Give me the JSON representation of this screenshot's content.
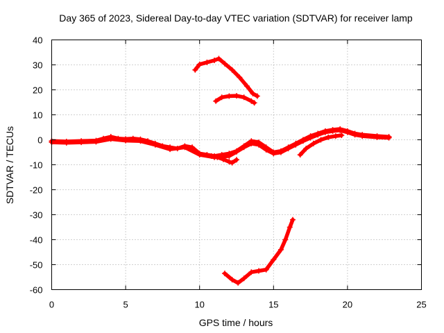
{
  "chart_data": {
    "type": "line",
    "title": "Day 365 of 2023, Sidereal Day-to-day VTEC variation (SDTVAR) for receiver lamp",
    "xlabel": "GPS time / hours",
    "ylabel": "SDTVAR / TECUs",
    "xlim": [
      0,
      25
    ],
    "ylim": [
      -60,
      40
    ],
    "xticks": [
      0,
      5,
      10,
      15,
      20,
      25
    ],
    "yticks": [
      -60,
      -50,
      -40,
      -30,
      -20,
      -10,
      0,
      10,
      20,
      30,
      40
    ],
    "grid": true,
    "legend": "none",
    "color": "#ff0000",
    "series": [
      {
        "name": "main-track-a",
        "points": [
          [
            0.0,
            -0.5
          ],
          [
            1.0,
            -0.7
          ],
          [
            2.0,
            -0.5
          ],
          [
            3.0,
            -0.3
          ],
          [
            3.5,
            0.5
          ],
          [
            4.0,
            1.2
          ],
          [
            4.5,
            0.5
          ],
          [
            5.0,
            0.3
          ],
          [
            5.5,
            0.5
          ],
          [
            6.0,
            0.2
          ],
          [
            6.5,
            -0.5
          ],
          [
            7.0,
            -1.5
          ],
          [
            7.5,
            -2.5
          ],
          [
            8.0,
            -3.0
          ],
          [
            8.5,
            -3.5
          ],
          [
            9.0,
            -2.5
          ],
          [
            9.5,
            -3.0
          ],
          [
            10.0,
            -5.5
          ],
          [
            10.5,
            -6.0
          ],
          [
            11.0,
            -6.5
          ],
          [
            11.5,
            -6.0
          ],
          [
            12.0,
            -5.5
          ],
          [
            12.5,
            -4.5
          ],
          [
            13.0,
            -2.5
          ],
          [
            13.5,
            -0.5
          ],
          [
            14.0,
            -1.0
          ],
          [
            14.5,
            -3.0
          ],
          [
            15.0,
            -5.0
          ],
          [
            15.5,
            -4.5
          ],
          [
            16.0,
            -3.0
          ],
          [
            16.5,
            -1.5
          ],
          [
            17.0,
            0.0
          ],
          [
            17.5,
            1.5
          ],
          [
            18.0,
            2.5
          ],
          [
            18.5,
            3.5
          ],
          [
            19.0,
            4.0
          ],
          [
            19.5,
            4.3
          ],
          [
            20.0,
            3.5
          ],
          [
            20.5,
            2.5
          ],
          [
            21.0,
            2.0
          ],
          [
            22.0,
            1.5
          ],
          [
            22.8,
            1.2
          ]
        ]
      },
      {
        "name": "main-track-b",
        "points": [
          [
            0.0,
            -1.0
          ],
          [
            1.0,
            -1.2
          ],
          [
            2.0,
            -1.0
          ],
          [
            3.0,
            -0.8
          ],
          [
            4.0,
            0.3
          ],
          [
            5.0,
            -0.3
          ],
          [
            6.0,
            -0.5
          ],
          [
            7.0,
            -2.0
          ],
          [
            8.0,
            -3.8
          ],
          [
            9.0,
            -3.0
          ],
          [
            10.0,
            -6.0
          ],
          [
            11.0,
            -7.0
          ],
          [
            12.0,
            -6.5
          ],
          [
            12.5,
            -4.8
          ],
          [
            13.0,
            -3.0
          ],
          [
            13.5,
            -1.5
          ],
          [
            14.0,
            -2.0
          ],
          [
            14.5,
            -4.0
          ],
          [
            15.0,
            -5.5
          ],
          [
            15.5,
            -5.0
          ],
          [
            16.0,
            -3.5
          ],
          [
            16.5,
            -2.0
          ],
          [
            17.0,
            -0.5
          ],
          [
            17.5,
            0.8
          ],
          [
            18.0,
            2.0
          ],
          [
            18.5,
            3.0
          ],
          [
            19.0,
            3.5
          ],
          [
            19.5,
            3.8
          ],
          [
            20.0,
            3.0
          ],
          [
            20.5,
            2.0
          ],
          [
            21.0,
            1.5
          ],
          [
            22.0,
            1.0
          ],
          [
            22.8,
            0.8
          ]
        ]
      },
      {
        "name": "dip-segment",
        "points": [
          [
            10.8,
            -6.5
          ],
          [
            11.2,
            -7.0
          ],
          [
            11.6,
            -7.8
          ],
          [
            12.0,
            -8.8
          ],
          [
            12.2,
            -9.2
          ],
          [
            12.5,
            -8.0
          ]
        ]
      },
      {
        "name": "rising-segment",
        "points": [
          [
            16.8,
            -6.0
          ],
          [
            17.2,
            -3.5
          ],
          [
            17.7,
            -1.5
          ],
          [
            18.2,
            0.0
          ],
          [
            18.7,
            1.0
          ],
          [
            19.2,
            1.5
          ],
          [
            19.6,
            1.8
          ]
        ]
      },
      {
        "name": "upper-arc",
        "points": [
          [
            9.7,
            28.0
          ],
          [
            10.0,
            30.2
          ],
          [
            10.5,
            31.0
          ],
          [
            11.0,
            31.8
          ],
          [
            11.3,
            32.5
          ],
          [
            11.7,
            30.5
          ],
          [
            12.2,
            28.0
          ],
          [
            12.7,
            25.0
          ],
          [
            13.2,
            21.5
          ],
          [
            13.6,
            18.5
          ],
          [
            13.9,
            17.5
          ]
        ]
      },
      {
        "name": "middle-arc",
        "points": [
          [
            11.1,
            15.5
          ],
          [
            11.5,
            17.0
          ],
          [
            12.0,
            17.5
          ],
          [
            12.5,
            17.6
          ],
          [
            13.0,
            17.0
          ],
          [
            13.5,
            15.5
          ],
          [
            13.7,
            14.8
          ]
        ]
      },
      {
        "name": "lower-arc",
        "points": [
          [
            11.7,
            -53.5
          ],
          [
            12.2,
            -56.0
          ],
          [
            12.6,
            -57.3
          ],
          [
            13.0,
            -55.5
          ],
          [
            13.5,
            -53.0
          ],
          [
            14.0,
            -52.5
          ],
          [
            14.5,
            -52.0
          ],
          [
            15.0,
            -48.0
          ],
          [
            15.5,
            -44.0
          ],
          [
            15.8,
            -40.0
          ],
          [
            16.1,
            -35.0
          ],
          [
            16.3,
            -32.0
          ]
        ]
      }
    ]
  }
}
